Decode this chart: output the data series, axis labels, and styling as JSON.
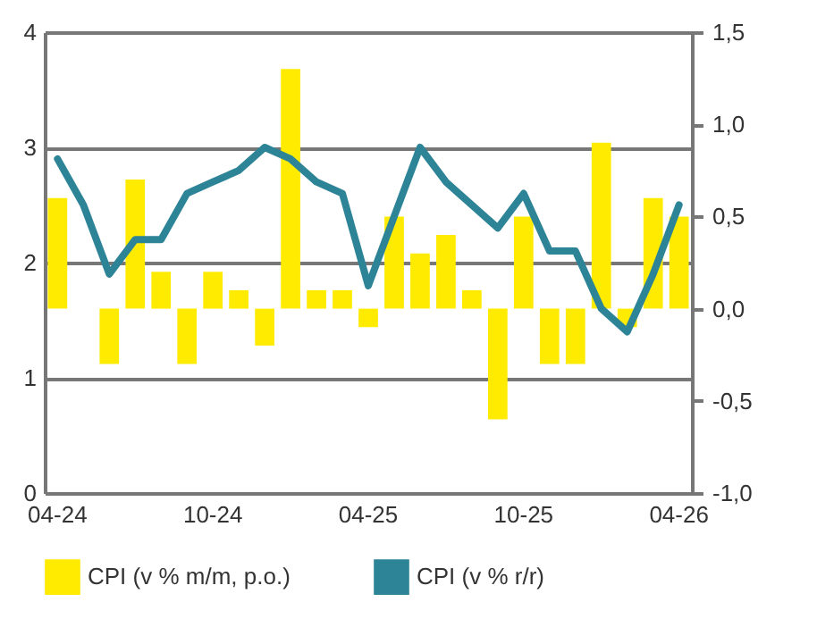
{
  "chart_data": {
    "type": "bar",
    "categories": [
      "04-24",
      null,
      null,
      null,
      null,
      null,
      "10-24",
      null,
      null,
      null,
      null,
      null,
      "04-25",
      null,
      null,
      null,
      null,
      null,
      "10-25",
      null,
      null,
      null,
      null,
      null,
      "04-26"
    ],
    "series": [
      {
        "name": "CPI (v % m/m, p.o.)",
        "axis": "y2",
        "color": "#ffeb00",
        "values": [
          0.6,
          0.0,
          -0.3,
          0.7,
          0.2,
          -0.3,
          0.2,
          0.1,
          -0.2,
          1.3,
          0.1,
          0.1,
          -0.1,
          0.5,
          0.3,
          0.4,
          0.1,
          -0.6,
          0.5,
          -0.3,
          -0.3,
          0.9,
          -0.1,
          0.6,
          0.5
        ]
      },
      {
        "name": "CPI (v % r/r)",
        "type": "line",
        "color": "#2e8497",
        "values": [
          2.9,
          2.5,
          1.9,
          2.2,
          2.2,
          2.6,
          2.7,
          2.8,
          3.0,
          2.9,
          2.7,
          2.6,
          1.8,
          2.4,
          3.0,
          2.7,
          2.5,
          2.3,
          2.6,
          2.1,
          2.1,
          1.6,
          1.4,
          1.9,
          2.5
        ]
      }
    ],
    "ylim": [
      0,
      4
    ],
    "yticks": [
      0,
      1,
      2,
      3,
      4
    ],
    "y2lim": [
      -1,
      1.5
    ],
    "y2ticks": [
      {
        "value": -1,
        "label": "-1,0"
      },
      {
        "value": -0.5,
        "label": "-0,5"
      },
      {
        "value": 0,
        "label": "0,0"
      },
      {
        "value": 0.5,
        "label": "0,5"
      },
      {
        "value": 1,
        "label": "1,0"
      },
      {
        "value": 1.5,
        "label": "1,5"
      }
    ],
    "grid": "y",
    "legend": "bottom"
  }
}
